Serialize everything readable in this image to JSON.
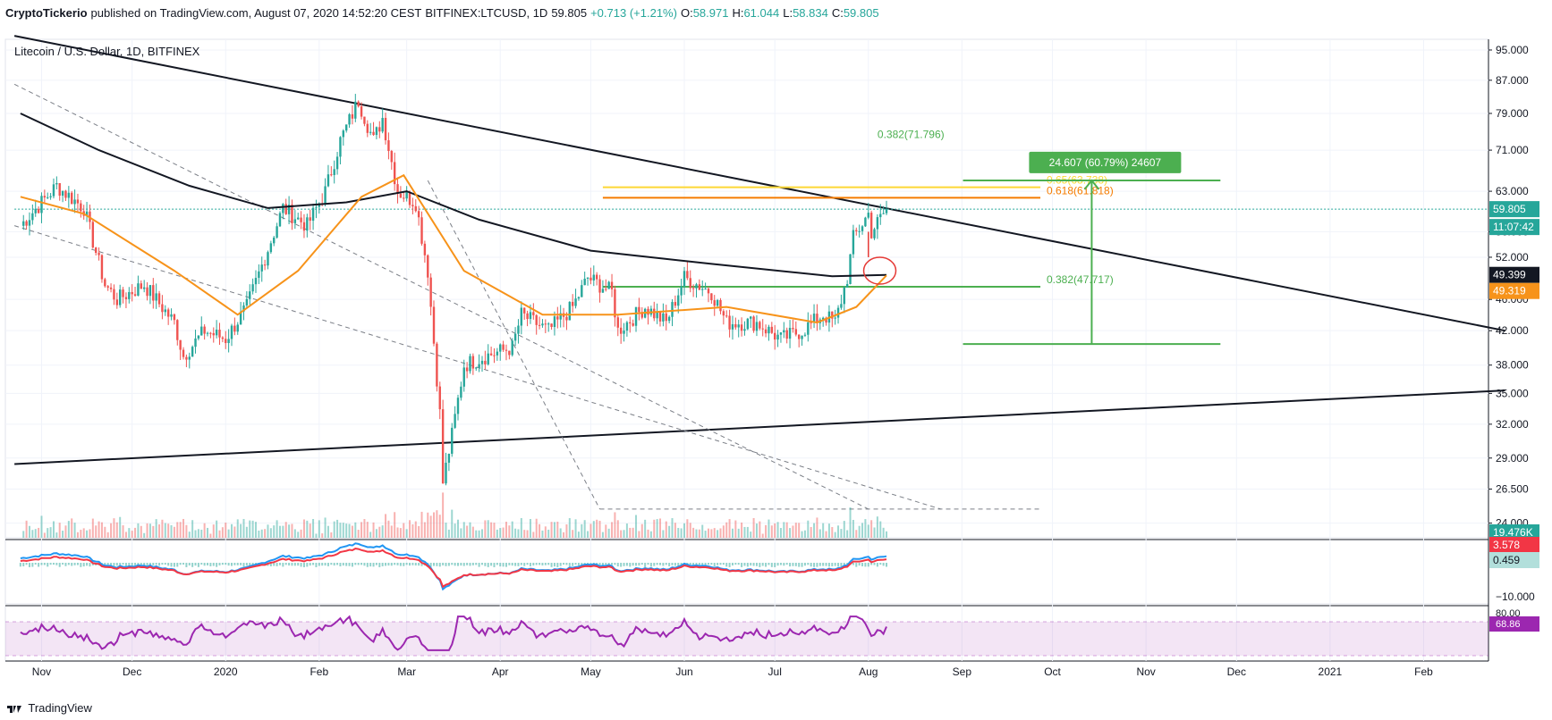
{
  "header": {
    "author": "CryptoTickerio",
    "published": "published on TradingView.com, August 07, 2020 14:52:20 CEST",
    "symbol": "BITFINEX:LTCUSD, 1D",
    "last": "59.805",
    "change": "+0.713 (+1.21%)",
    "o_label": "O:",
    "o": "58.971",
    "h_label": "H:",
    "h": "61.044",
    "l_label": "L:",
    "l": "58.834",
    "c_label": "C:",
    "c": "59.805"
  },
  "footer": {
    "brand": "TradingView"
  },
  "chart_data": {
    "type": "candlestick",
    "title": "Litecoin / U.S. Dollar, 1D, BITFINEX",
    "x_axis": {
      "ticks": [
        "Nov",
        "Dec",
        "2020",
        "Feb",
        "Mar",
        "Apr",
        "May",
        "Jun",
        "Jul",
        "Aug",
        "Sep",
        "Oct",
        "Nov",
        "Dec",
        "2021",
        "Feb"
      ]
    },
    "y_axis": {
      "scale": "log",
      "range": [
        23,
        98
      ],
      "ticks": [
        "95.000",
        "87.000",
        "79.000",
        "71.000",
        "63.000",
        "56.000",
        "52.000",
        "46.000",
        "42.000",
        "38.000",
        "35.000",
        "32.000",
        "29.000",
        "26.500",
        "24.000"
      ]
    },
    "price_labels": [
      {
        "text": "59.805",
        "color": "#26a69a"
      },
      {
        "text": "11:07:42",
        "color": "#26a69a"
      },
      {
        "text": "49.399",
        "color": "#131722"
      },
      {
        "text": "49.319",
        "color": "#f7931a"
      },
      {
        "text": "19.476K",
        "color": "#26a69a"
      }
    ],
    "ohlc_anchors": [
      {
        "date": "2019-10-25",
        "price": 57
      },
      {
        "date": "2019-11-01",
        "price": 61
      },
      {
        "date": "2019-11-06",
        "price": 64
      },
      {
        "date": "2019-11-15",
        "price": 60
      },
      {
        "date": "2019-11-22",
        "price": 48
      },
      {
        "date": "2019-11-26",
        "price": 46
      },
      {
        "date": "2019-12-05",
        "price": 48
      },
      {
        "date": "2019-12-15",
        "price": 43
      },
      {
        "date": "2019-12-18",
        "price": 39
      },
      {
        "date": "2019-12-25",
        "price": 42
      },
      {
        "date": "2020-01-01",
        "price": 41
      },
      {
        "date": "2020-01-08",
        "price": 45
      },
      {
        "date": "2020-01-14",
        "price": 52
      },
      {
        "date": "2020-01-20",
        "price": 60
      },
      {
        "date": "2020-01-28",
        "price": 57
      },
      {
        "date": "2020-02-03",
        "price": 63
      },
      {
        "date": "2020-02-08",
        "price": 73
      },
      {
        "date": "2020-02-14",
        "price": 82
      },
      {
        "date": "2020-02-19",
        "price": 73
      },
      {
        "date": "2020-02-22",
        "price": 78
      },
      {
        "date": "2020-02-27",
        "price": 63
      },
      {
        "date": "2020-03-04",
        "price": 61
      },
      {
        "date": "2020-03-08",
        "price": 50
      },
      {
        "date": "2020-03-12",
        "price": 33
      },
      {
        "date": "2020-03-13",
        "price": 27
      },
      {
        "date": "2020-03-16",
        "price": 31
      },
      {
        "date": "2020-03-20",
        "price": 38
      },
      {
        "date": "2020-03-27",
        "price": 39
      },
      {
        "date": "2020-04-05",
        "price": 40
      },
      {
        "date": "2020-04-08",
        "price": 44
      },
      {
        "date": "2020-04-17",
        "price": 42
      },
      {
        "date": "2020-04-25",
        "price": 45
      },
      {
        "date": "2020-04-30",
        "price": 49
      },
      {
        "date": "2020-05-08",
        "price": 47
      },
      {
        "date": "2020-05-10",
        "price": 42
      },
      {
        "date": "2020-05-19",
        "price": 45
      },
      {
        "date": "2020-05-26",
        "price": 43
      },
      {
        "date": "2020-06-01",
        "price": 49
      },
      {
        "date": "2020-06-10",
        "price": 47
      },
      {
        "date": "2020-06-15",
        "price": 43
      },
      {
        "date": "2020-06-25",
        "price": 43
      },
      {
        "date": "2020-07-03",
        "price": 41
      },
      {
        "date": "2020-07-10",
        "price": 42
      },
      {
        "date": "2020-07-17",
        "price": 44
      },
      {
        "date": "2020-07-21",
        "price": 43
      },
      {
        "date": "2020-07-25",
        "price": 49
      },
      {
        "date": "2020-07-27",
        "price": 55
      },
      {
        "date": "2020-08-01",
        "price": 59
      },
      {
        "date": "2020-08-02",
        "price": 56
      },
      {
        "date": "2020-08-07",
        "price": 59.805
      }
    ],
    "moving_averages": [
      {
        "color": "#131722",
        "points": [
          {
            "date": "2019-10-25",
            "price": 79
          },
          {
            "date": "2019-11-20",
            "price": 71
          },
          {
            "date": "2019-12-20",
            "price": 64
          },
          {
            "date": "2020-01-15",
            "price": 60
          },
          {
            "date": "2020-02-10",
            "price": 61
          },
          {
            "date": "2020-03-01",
            "price": 63
          },
          {
            "date": "2020-03-25",
            "price": 58
          },
          {
            "date": "2020-05-01",
            "price": 53
          },
          {
            "date": "2020-06-10",
            "price": 51
          },
          {
            "date": "2020-07-20",
            "price": 49.2
          },
          {
            "date": "2020-08-07",
            "price": 49.399
          }
        ]
      },
      {
        "color": "#f7931a",
        "points": [
          {
            "date": "2019-10-25",
            "price": 62
          },
          {
            "date": "2019-11-15",
            "price": 59
          },
          {
            "date": "2019-12-15",
            "price": 50
          },
          {
            "date": "2020-01-05",
            "price": 44
          },
          {
            "date": "2020-01-25",
            "price": 50
          },
          {
            "date": "2020-02-15",
            "price": 62
          },
          {
            "date": "2020-02-29",
            "price": 66
          },
          {
            "date": "2020-03-20",
            "price": 50
          },
          {
            "date": "2020-04-15",
            "price": 44
          },
          {
            "date": "2020-05-10",
            "price": 44
          },
          {
            "date": "2020-06-15",
            "price": 45
          },
          {
            "date": "2020-07-15",
            "price": 43
          },
          {
            "date": "2020-07-28",
            "price": 45
          },
          {
            "date": "2020-08-07",
            "price": 49.319
          }
        ]
      }
    ],
    "trendlines": [
      {
        "style": "solid",
        "color": "#131722",
        "from": {
          "date": "2019-10-23",
          "price": 99
        },
        "to": {
          "date": "2021-02-28",
          "price": 42
        }
      },
      {
        "style": "solid",
        "color": "#131722",
        "from": {
          "date": "2019-10-23",
          "price": 28.5
        },
        "to": {
          "date": "2021-02-28",
          "price": 35.3
        }
      },
      {
        "style": "dashed",
        "color": "#7b7f87",
        "from": {
          "date": "2019-10-23",
          "price": 86
        },
        "to": {
          "date": "2020-08-01",
          "price": 25
        }
      },
      {
        "style": "dashed",
        "color": "#7b7f87",
        "from": {
          "date": "2019-10-23",
          "price": 57
        },
        "to": {
          "date": "2020-08-25",
          "price": 25
        }
      },
      {
        "style": "dashed",
        "color": "#7b7f87",
        "from": {
          "date": "2020-03-08",
          "price": 65
        },
        "to": {
          "date": "2020-05-04",
          "price": 25
        }
      }
    ],
    "horizontal_levels": [
      {
        "label": "",
        "price": 25,
        "color": "#7b7f87",
        "from": "2020-05-04",
        "to": "2020-09-27",
        "style": "dashed"
      },
      {
        "label": "0.382(47.717)",
        "price": 47.717,
        "color": "#4caf50",
        "from": "2020-05-05",
        "to": "2020-09-27"
      },
      {
        "label": "0.618(61.818)",
        "price": 61.818,
        "color": "#f57c00",
        "from": "2020-05-05",
        "to": "2020-09-27"
      },
      {
        "label": "0.65(63.738)",
        "price": 63.738,
        "color": "#fdd835",
        "from": "2020-05-05",
        "to": "2020-09-27"
      },
      {
        "label": "",
        "price": 59.805,
        "color": "#26a69a",
        "from": "2019-10-23",
        "to": "2021-02-28",
        "style": "dotted"
      }
    ],
    "annotations": [
      {
        "text": "0.382(71.796)",
        "date": "2020-08-04",
        "price": 73.5,
        "color": "#4caf50"
      },
      {
        "text": "24.607 (60.79%) 24607",
        "date": "2020-10-14",
        "price": 68.5,
        "color": "#ffffff",
        "bg": "#4caf50"
      }
    ],
    "measure": {
      "from": {
        "date": "2020-10-01",
        "price": 40.4
      },
      "to": {
        "date": "2020-12-01",
        "price": 65
      },
      "color": "#4caf50"
    },
    "volume": {
      "label": "19.476K"
    },
    "macd": {
      "labels": [
        "3.578",
        "0.459"
      ],
      "colors": [
        "#f23645",
        "#26a69a"
      ]
    },
    "rsi": {
      "labels": [
        "80.00",
        "68.86"
      ],
      "color": "#9c27b0"
    },
    "macd_axis_label": "−10.000"
  }
}
